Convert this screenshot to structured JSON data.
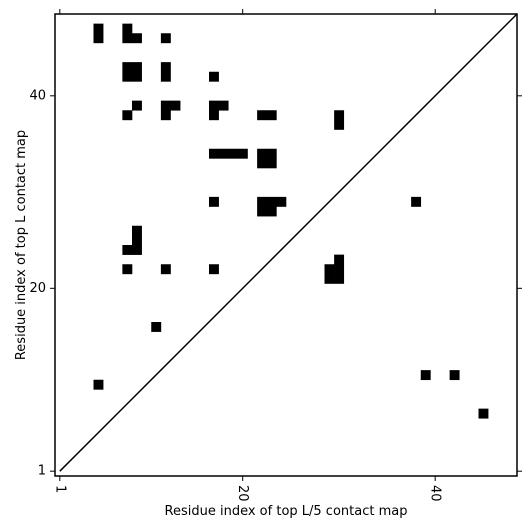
{
  "chart_data": {
    "type": "heatmap",
    "title": "",
    "xlabel": "Residue index of top L/5 contact map",
    "ylabel": "Residue index of top L contact map",
    "xlim": [
      0.5,
      48.5
    ],
    "ylim": [
      0.5,
      48.5
    ],
    "x_ticks": [
      1,
      20,
      40
    ],
    "y_ticks": [
      1,
      20,
      40
    ],
    "x_tick_rotation_deg": -90,
    "grid": false,
    "legend": "none",
    "diagonal_line": true,
    "cell_color": "#000000",
    "background_color": "#ffffff",
    "cells": [
      [
        5,
        47
      ],
      [
        5,
        46
      ],
      [
        8,
        47
      ],
      [
        8,
        46
      ],
      [
        9,
        46
      ],
      [
        12,
        46
      ],
      [
        8,
        43
      ],
      [
        9,
        43
      ],
      [
        8,
        42
      ],
      [
        9,
        42
      ],
      [
        12,
        43
      ],
      [
        12,
        42
      ],
      [
        17,
        42
      ],
      [
        9,
        39
      ],
      [
        12,
        39
      ],
      [
        13,
        39
      ],
      [
        17,
        39
      ],
      [
        18,
        39
      ],
      [
        8,
        38
      ],
      [
        12,
        38
      ],
      [
        17,
        38
      ],
      [
        22,
        38
      ],
      [
        23,
        38
      ],
      [
        30,
        38
      ],
      [
        30,
        37
      ],
      [
        17,
        34
      ],
      [
        18,
        34
      ],
      [
        19,
        34
      ],
      [
        20,
        34
      ],
      [
        22,
        34
      ],
      [
        23,
        34
      ],
      [
        22,
        33
      ],
      [
        23,
        33
      ],
      [
        17,
        29
      ],
      [
        22,
        29
      ],
      [
        23,
        29
      ],
      [
        24,
        29
      ],
      [
        22,
        28
      ],
      [
        23,
        28
      ],
      [
        38,
        29
      ],
      [
        9,
        26
      ],
      [
        9,
        25
      ],
      [
        8,
        24
      ],
      [
        9,
        24
      ],
      [
        30,
        23
      ],
      [
        29,
        22
      ],
      [
        30,
        22
      ],
      [
        8,
        22
      ],
      [
        12,
        22
      ],
      [
        17,
        22
      ],
      [
        29,
        21
      ],
      [
        30,
        21
      ],
      [
        11,
        16
      ],
      [
        5,
        10
      ],
      [
        39,
        11
      ],
      [
        42,
        11
      ],
      [
        45,
        7
      ]
    ]
  }
}
